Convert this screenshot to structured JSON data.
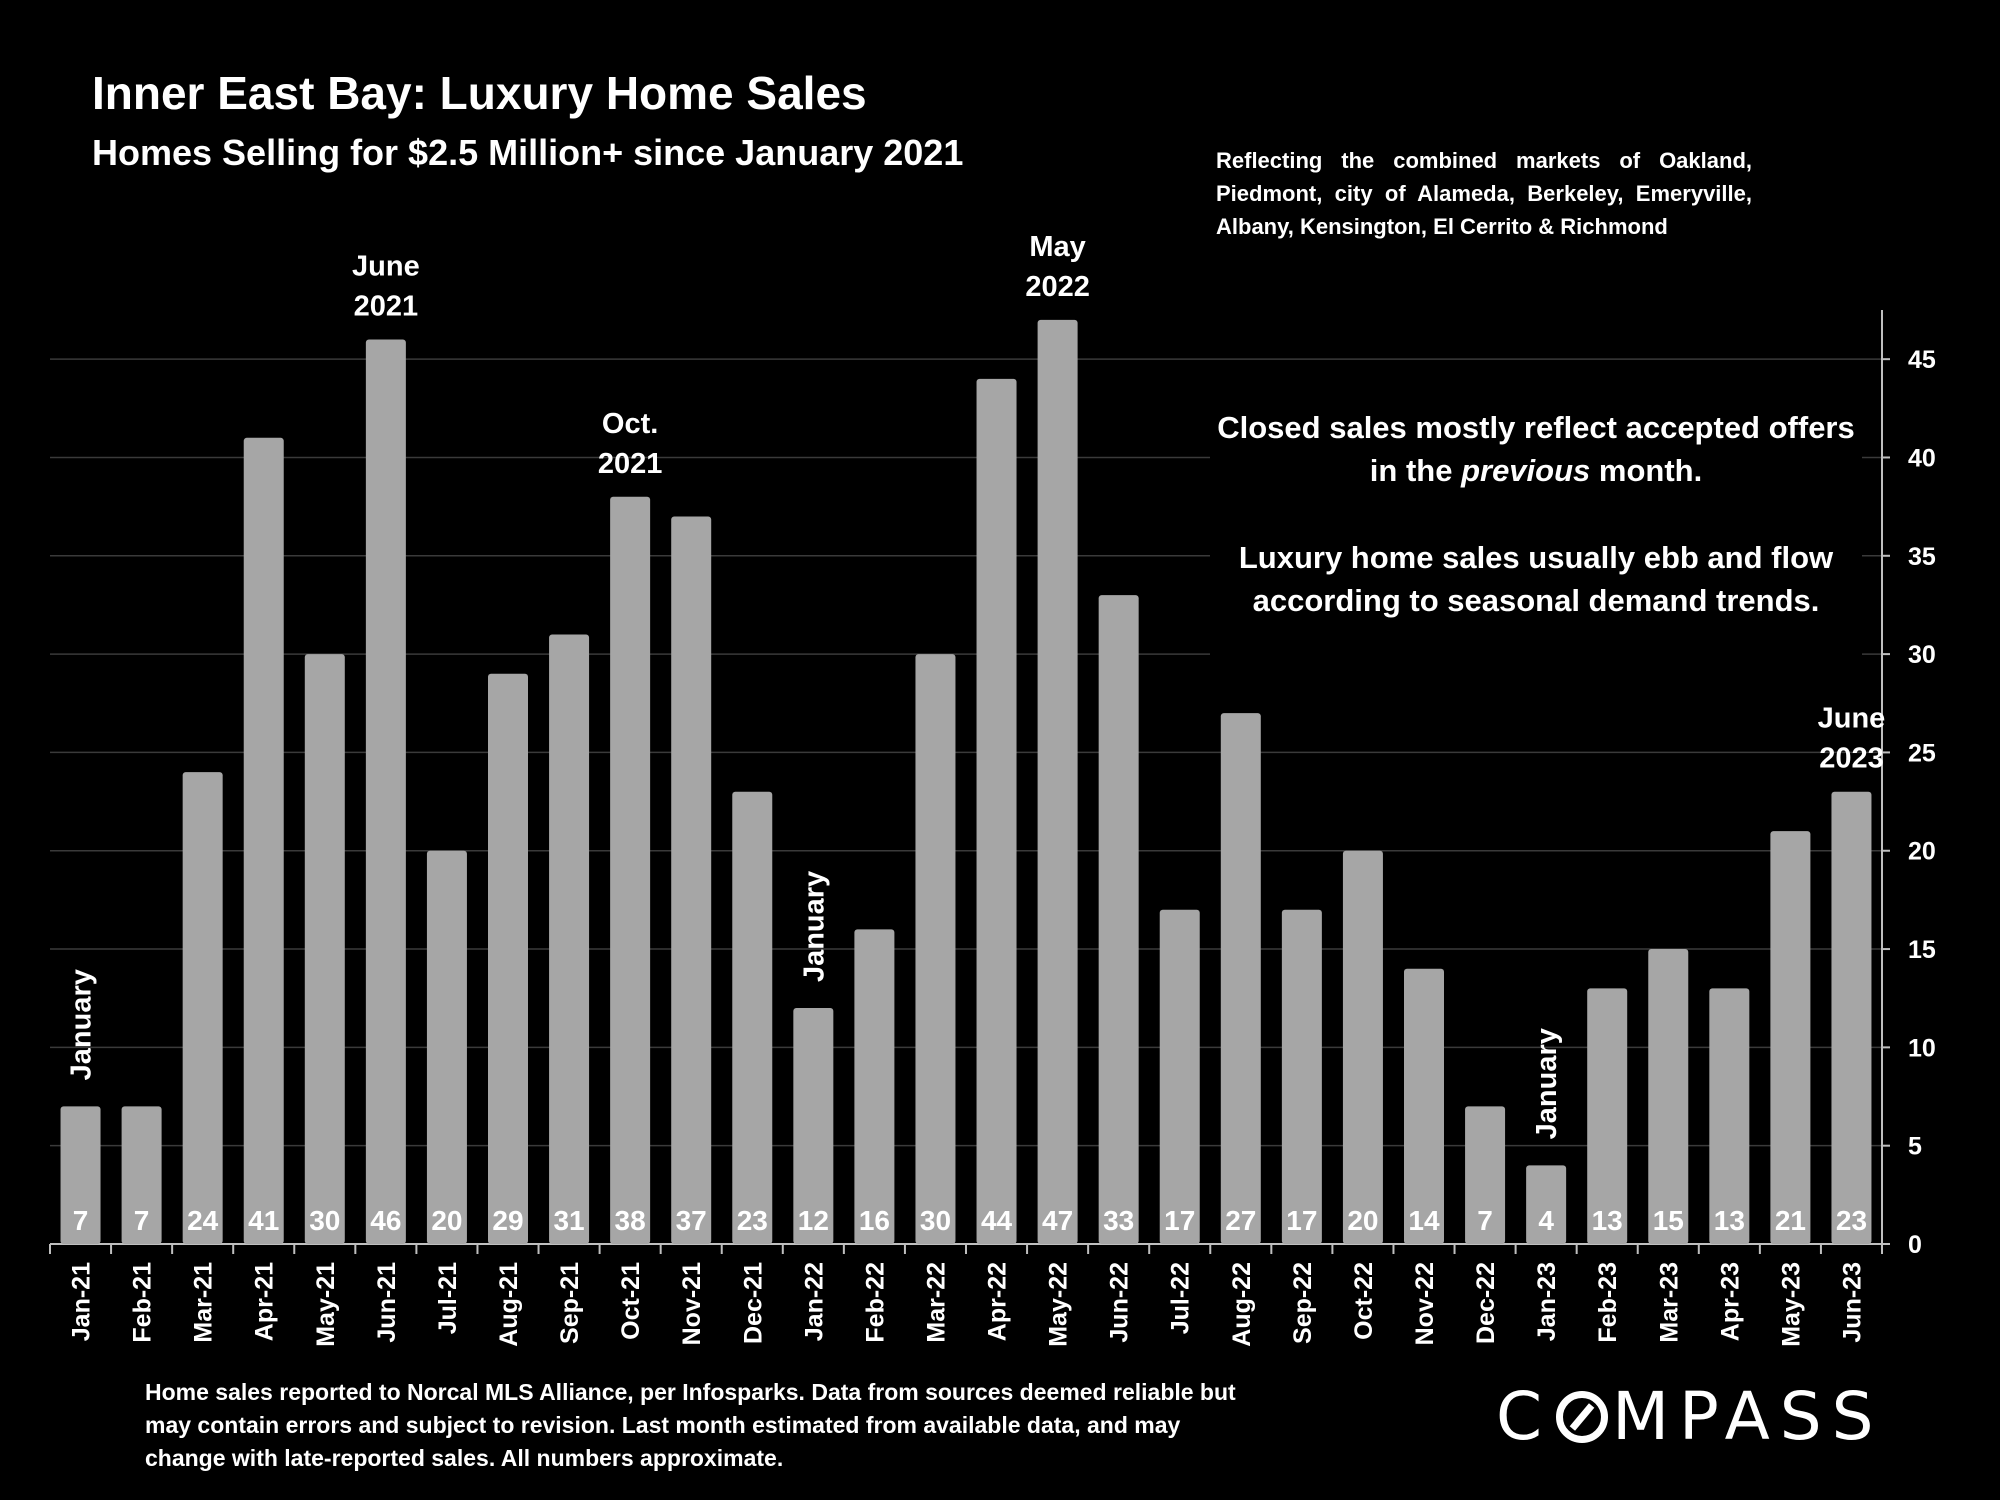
{
  "header": {
    "title": "Inner East Bay: Luxury Home Sales",
    "subtitle": "Homes Selling for $2.5 Million+ since January 2021",
    "coverage": "Reflecting the combined markets of Oakland, Piedmont, city of Alameda, Berkeley, Emeryville, Albany, Kensington, El Cerrito & Richmond"
  },
  "notes": {
    "line1_a": "Closed sales mostly reflect accepted offers in the ",
    "line1_em": "previous",
    "line1_b": " month.",
    "line2": "Luxury home sales usually ebb and flow according to seasonal demand trends."
  },
  "footer": {
    "text": "Home sales reported to Norcal MLS Alliance, per Infosparks. Data from sources deemed reliable but may contain errors and subject to revision.  Last month estimated from available data, and may change with late-reported sales. All numbers approximate."
  },
  "logo": {
    "before": "C",
    "after": "MPASS"
  },
  "chart_data": {
    "type": "bar",
    "categories": [
      "Jan-21",
      "Feb-21",
      "Mar-21",
      "Apr-21",
      "May-21",
      "Jun-21",
      "Jul-21",
      "Aug-21",
      "Sep-21",
      "Oct-21",
      "Nov-21",
      "Dec-21",
      "Jan-22",
      "Feb-22",
      "Mar-22",
      "Apr-22",
      "May-22",
      "Jun-22",
      "Jul-22",
      "Aug-22",
      "Sep-22",
      "Oct-22",
      "Nov-22",
      "Dec-22",
      "Jan-23",
      "Feb-23",
      "Mar-23",
      "Apr-23",
      "May-23",
      "Jun-23"
    ],
    "values": [
      7,
      7,
      24,
      41,
      30,
      46,
      20,
      29,
      31,
      38,
      37,
      23,
      12,
      16,
      30,
      44,
      47,
      33,
      17,
      27,
      17,
      20,
      14,
      7,
      4,
      13,
      15,
      13,
      21,
      23
    ],
    "ylim": [
      0,
      47.5
    ],
    "yticks": [
      0,
      5,
      10,
      15,
      20,
      25,
      30,
      35,
      40,
      45
    ],
    "y_axis_side": "right",
    "grid": true,
    "bar_color": "#a6a6a6",
    "annotations": [
      {
        "category": "Jan-21",
        "text": "January",
        "vertical": true
      },
      {
        "category": "Jun-21",
        "lines": [
          "June",
          "2021"
        ]
      },
      {
        "category": "Oct-21",
        "lines": [
          "Oct.",
          "2021"
        ]
      },
      {
        "category": "Jan-22",
        "text": "January",
        "vertical": true
      },
      {
        "category": "May-22",
        "lines": [
          "May",
          "2022"
        ]
      },
      {
        "category": "Jan-23",
        "text": "January",
        "vertical": true
      },
      {
        "category": "Jun-23",
        "lines": [
          "June",
          "2023"
        ]
      }
    ]
  }
}
